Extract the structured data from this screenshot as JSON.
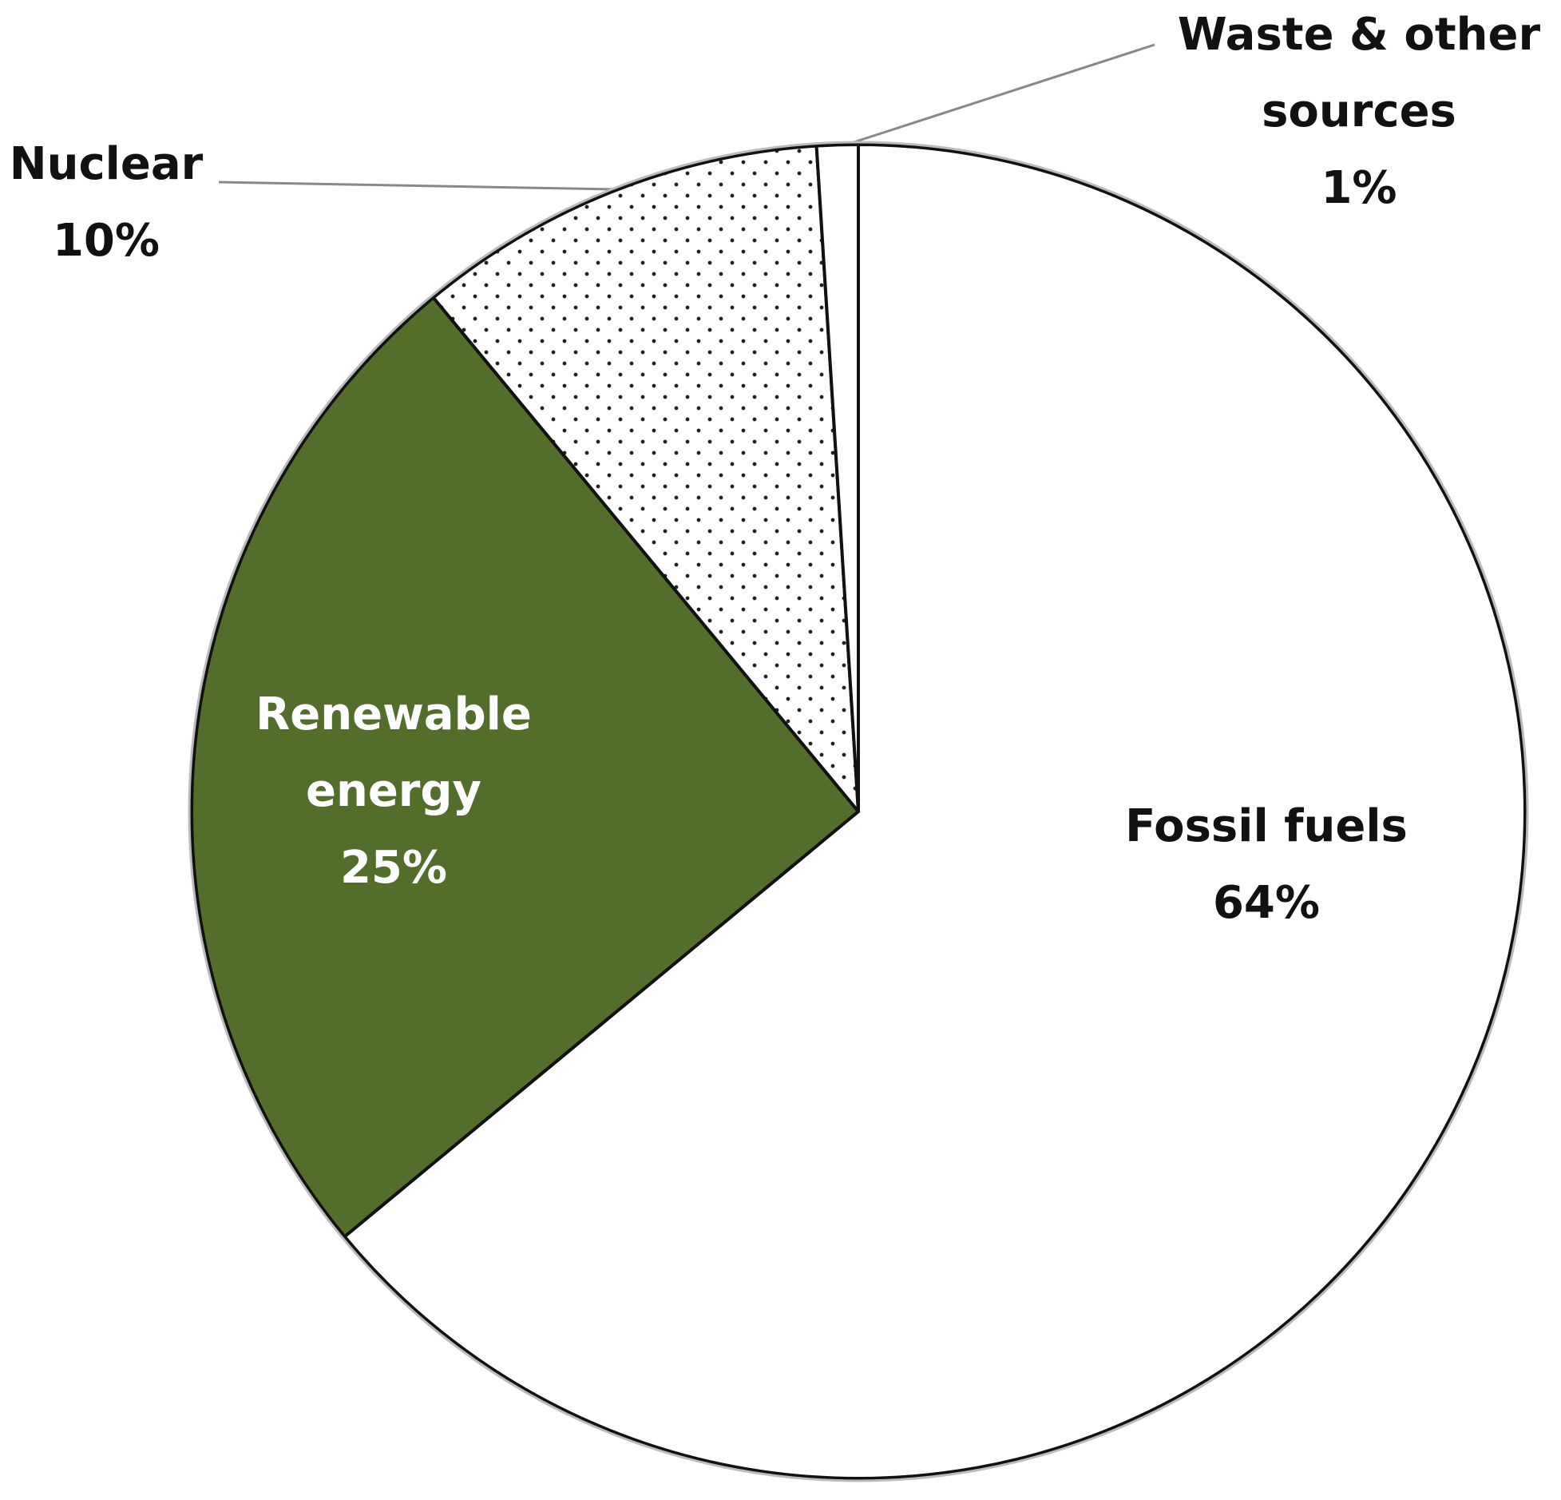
{
  "chart_data": {
    "type": "pie",
    "categories": [
      "Fossil fuels",
      "Renewable energy",
      "Nuclear",
      "Waste & other sources"
    ],
    "values": [
      64,
      25,
      10,
      1
    ],
    "value_labels": [
      "64%",
      "25%",
      "10%",
      "1%"
    ],
    "colors": [
      "#ffffff",
      "#536e2b",
      "#ffffff",
      "#ffffff"
    ],
    "patterns": [
      "solid",
      "solid",
      "dots",
      "solid"
    ],
    "label_colors": [
      "#111111",
      "#ffffff",
      "#111111",
      "#111111"
    ]
  }
}
